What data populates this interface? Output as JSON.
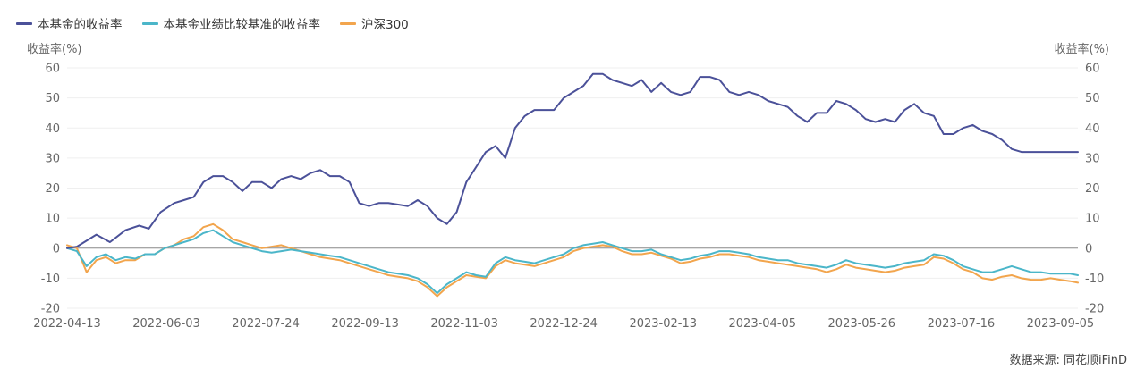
{
  "colors": {
    "fund": "#4b5199",
    "benchmark": "#4bb6c9",
    "csi300": "#f2a54d"
  },
  "legend": [
    {
      "label": "本基金的收益率",
      "color": "#4b5199"
    },
    {
      "label": "本基金业绩比较基准的收益率",
      "color": "#4bb6c9"
    },
    {
      "label": "沪深300",
      "color": "#f2a54d"
    }
  ],
  "axis_titles": {
    "left": "收益率(%)",
    "right": "收益率(%)"
  },
  "source": "数据来源: 同花顺iFinD",
  "chart_data": {
    "type": "line",
    "title": "",
    "xlabel": "",
    "ylabel": "收益率(%)",
    "ylim": [
      -20,
      60
    ],
    "yticks": [
      60,
      50,
      40,
      30,
      20,
      10,
      0,
      -10,
      -20
    ],
    "xlim": [
      0,
      519
    ],
    "x_tick_positions": [
      0,
      51,
      102,
      153,
      204,
      255,
      306,
      357,
      408,
      459,
      510
    ],
    "x_tick_labels": [
      "2022-04-13",
      "2022-06-03",
      "2022-07-24",
      "2022-09-13",
      "2022-11-03",
      "2022-12-24",
      "2023-02-13",
      "2023-04-05",
      "2023-05-26",
      "2023-07-16",
      "2023-09-05"
    ],
    "series": [
      {
        "name": "本基金的收益率",
        "x": [
          0,
          5,
          15,
          22,
          30,
          37,
          42,
          48,
          55,
          60,
          65,
          70,
          75,
          80,
          85,
          90,
          95,
          100,
          105,
          110,
          115,
          120,
          125,
          130,
          135,
          140,
          145,
          150,
          155,
          160,
          165,
          170,
          175,
          180,
          185,
          190,
          195,
          200,
          203,
          205,
          208,
          210,
          215,
          220,
          225,
          230,
          235,
          240,
          245,
          250,
          255,
          260,
          265,
          270,
          275,
          280,
          285,
          290,
          295,
          300,
          305,
          310,
          315,
          320,
          325,
          330,
          335,
          340,
          345,
          350,
          355,
          360,
          365,
          370,
          375,
          380,
          385,
          390,
          395,
          400,
          405,
          410,
          415,
          420,
          425,
          430,
          435,
          440,
          445,
          450,
          455,
          460,
          465,
          470,
          475,
          480,
          485,
          490,
          495,
          500,
          505,
          510,
          515,
          519
        ],
        "values": [
          0,
          0.5,
          4.5,
          2,
          6,
          7.5,
          6.5,
          12,
          15,
          16,
          17,
          22,
          24,
          24,
          22,
          19,
          22,
          22,
          20,
          23,
          24,
          23,
          25,
          26,
          24,
          24,
          22,
          15,
          14,
          15,
          15,
          14.5,
          14,
          16,
          14,
          10,
          8,
          12,
          18,
          22,
          25,
          27,
          32,
          34,
          30,
          40,
          44,
          46,
          46,
          46,
          50,
          52,
          54,
          58,
          58,
          56,
          55,
          54,
          56,
          52,
          55,
          52,
          51,
          52,
          57,
          57,
          56,
          52,
          51,
          52,
          51,
          49,
          48,
          47,
          44,
          42,
          45,
          45,
          49,
          48,
          46,
          43,
          42,
          43,
          42,
          46,
          48,
          45,
          44,
          38,
          38,
          40,
          41,
          39,
          38,
          36,
          33,
          32,
          32,
          32,
          32,
          32,
          32,
          32
        ]
      },
      {
        "name": "本基金业绩比较基准的收益率",
        "x": [
          0,
          5,
          10,
          15,
          20,
          25,
          30,
          35,
          40,
          45,
          50,
          55,
          60,
          65,
          70,
          75,
          80,
          85,
          90,
          95,
          100,
          105,
          110,
          115,
          120,
          125,
          130,
          135,
          140,
          145,
          150,
          155,
          160,
          165,
          170,
          175,
          180,
          185,
          190,
          195,
          200,
          205,
          210,
          215,
          220,
          225,
          230,
          235,
          240,
          245,
          250,
          255,
          260,
          265,
          270,
          275,
          280,
          285,
          290,
          295,
          300,
          305,
          310,
          315,
          320,
          325,
          330,
          335,
          340,
          345,
          350,
          355,
          360,
          365,
          370,
          375,
          380,
          385,
          390,
          395,
          400,
          405,
          410,
          415,
          420,
          425,
          430,
          435,
          440,
          445,
          450,
          455,
          460,
          465,
          470,
          475,
          480,
          485,
          490,
          495,
          500,
          505,
          510,
          515,
          519
        ],
        "values": [
          0,
          -1,
          -6,
          -3,
          -2,
          -4,
          -3,
          -3.5,
          -2,
          -2,
          0,
          1,
          2,
          3,
          5,
          6,
          4,
          2,
          1,
          0,
          -1,
          -1.5,
          -1,
          -0.5,
          -1,
          -1.5,
          -2,
          -2.5,
          -3,
          -4,
          -5,
          -6,
          -7,
          -8,
          -8.5,
          -9,
          -10,
          -12,
          -15,
          -12,
          -10,
          -8,
          -9,
          -9.5,
          -5,
          -3,
          -4,
          -4.5,
          -5,
          -4,
          -3,
          -2,
          0,
          1,
          1.5,
          2,
          1,
          0,
          -1,
          -1,
          -0.5,
          -2,
          -3,
          -4,
          -3.5,
          -2.5,
          -2,
          -1,
          -1,
          -1.5,
          -2,
          -3,
          -3.5,
          -4,
          -4,
          -5,
          -5.5,
          -6,
          -6.5,
          -5.5,
          -4,
          -5,
          -5.5,
          -6,
          -6.5,
          -6,
          -5,
          -4.5,
          -4,
          -2,
          -2.5,
          -4,
          -6,
          -7,
          -8,
          -8,
          -7,
          -6,
          -7,
          -8,
          -8,
          -8.5,
          -8.5,
          -8.5,
          -9
        ]
      },
      {
        "name": "沪深300",
        "x": [
          0,
          5,
          10,
          15,
          20,
          25,
          30,
          35,
          40,
          45,
          50,
          55,
          60,
          65,
          70,
          75,
          80,
          85,
          90,
          95,
          100,
          105,
          110,
          115,
          120,
          125,
          130,
          135,
          140,
          145,
          150,
          155,
          160,
          165,
          170,
          175,
          180,
          185,
          190,
          195,
          200,
          205,
          210,
          215,
          220,
          225,
          230,
          235,
          240,
          245,
          250,
          255,
          260,
          265,
          270,
          275,
          280,
          285,
          290,
          295,
          300,
          305,
          310,
          315,
          320,
          325,
          330,
          335,
          340,
          345,
          350,
          355,
          360,
          365,
          370,
          375,
          380,
          385,
          390,
          395,
          400,
          405,
          410,
          415,
          420,
          425,
          430,
          435,
          440,
          445,
          450,
          455,
          460,
          465,
          470,
          475,
          480,
          485,
          490,
          495,
          500,
          505,
          510,
          515,
          519
        ],
        "values": [
          1,
          0,
          -8,
          -4,
          -3,
          -5,
          -4,
          -4,
          -2,
          -2,
          0,
          1,
          3,
          4,
          7,
          8,
          6,
          3,
          2,
          1,
          0,
          0.5,
          1,
          0,
          -1,
          -2,
          -3,
          -3.5,
          -4,
          -5,
          -6,
          -7,
          -8,
          -9,
          -9.5,
          -10,
          -11,
          -13,
          -16,
          -13,
          -11,
          -9,
          -9.5,
          -10,
          -6,
          -4,
          -5,
          -5.5,
          -6,
          -5,
          -4,
          -3,
          -1,
          0,
          0.5,
          1,
          0.5,
          -1,
          -2,
          -2,
          -1.5,
          -2.5,
          -3.5,
          -5,
          -4.5,
          -3.5,
          -3,
          -2,
          -2,
          -2.5,
          -3,
          -4,
          -4.5,
          -5,
          -5.5,
          -6,
          -6.5,
          -7,
          -8,
          -7,
          -5.5,
          -6.5,
          -7,
          -7.5,
          -8,
          -7.5,
          -6.5,
          -6,
          -5.5,
          -3,
          -3.5,
          -5,
          -7,
          -8,
          -10,
          -10.5,
          -9.5,
          -9,
          -10,
          -10.5,
          -10.5,
          -10,
          -10.5,
          -11,
          -11.5
        ]
      }
    ]
  }
}
